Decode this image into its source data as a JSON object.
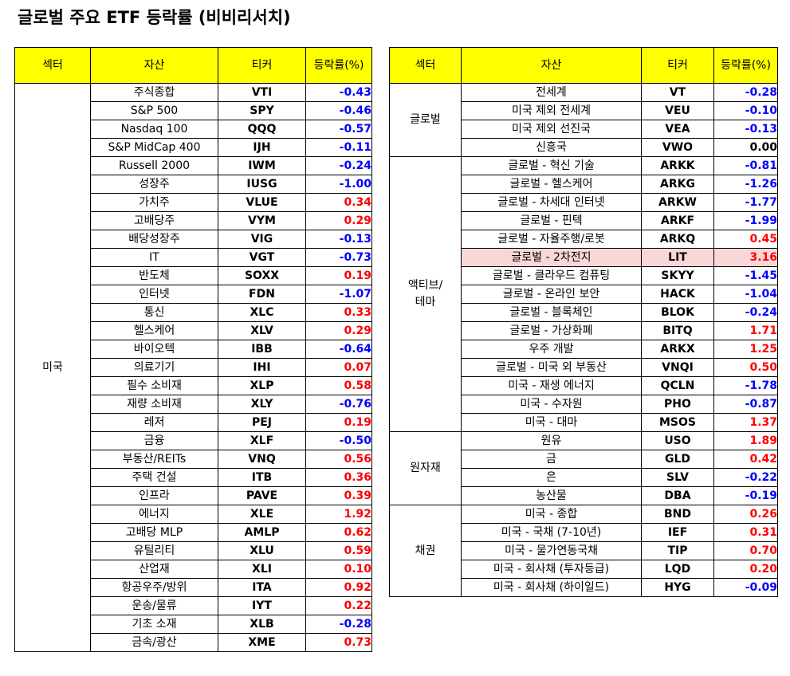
{
  "title": "글로벌 주요 ETF 등락률 (비비리서치)",
  "headers": {
    "sector": "섹터",
    "asset": "자산",
    "ticker": "티커",
    "change": "등락률(%)"
  },
  "colors": {
    "header_bg": "#ffff00",
    "positive": "#ff0000",
    "negative": "#0000ff",
    "highlight": "#f9d7d7"
  },
  "left": {
    "groups": [
      {
        "sector": "미국",
        "rows": [
          {
            "asset": "주식종합",
            "ticker": "VTI",
            "change": "-0.43"
          },
          {
            "asset": "S&P 500",
            "ticker": "SPY",
            "change": "-0.46"
          },
          {
            "asset": "Nasdaq 100",
            "ticker": "QQQ",
            "change": "-0.57"
          },
          {
            "asset": "S&P MidCap 400",
            "ticker": "IJH",
            "change": "-0.11"
          },
          {
            "asset": "Russell 2000",
            "ticker": "IWM",
            "change": "-0.24"
          },
          {
            "asset": "성장주",
            "ticker": "IUSG",
            "change": "-1.00"
          },
          {
            "asset": "가치주",
            "ticker": "VLUE",
            "change": "0.34"
          },
          {
            "asset": "고배당주",
            "ticker": "VYM",
            "change": "0.29"
          },
          {
            "asset": "배당성장주",
            "ticker": "VIG",
            "change": "-0.13"
          },
          {
            "asset": "IT",
            "ticker": "VGT",
            "change": "-0.73"
          },
          {
            "asset": "반도체",
            "ticker": "SOXX",
            "change": "0.19"
          },
          {
            "asset": "인터넷",
            "ticker": "FDN",
            "change": "-1.07"
          },
          {
            "asset": "통신",
            "ticker": "XLC",
            "change": "0.33"
          },
          {
            "asset": "헬스케어",
            "ticker": "XLV",
            "change": "0.29"
          },
          {
            "asset": "바이오텍",
            "ticker": "IBB",
            "change": "-0.64"
          },
          {
            "asset": "의료기기",
            "ticker": "IHI",
            "change": "0.07"
          },
          {
            "asset": "필수 소비재",
            "ticker": "XLP",
            "change": "0.58"
          },
          {
            "asset": "재량 소비재",
            "ticker": "XLY",
            "change": "-0.76"
          },
          {
            "asset": "레저",
            "ticker": "PEJ",
            "change": "0.19"
          },
          {
            "asset": "금융",
            "ticker": "XLF",
            "change": "-0.50"
          },
          {
            "asset": "부동산/REITs",
            "ticker": "VNQ",
            "change": "0.56"
          },
          {
            "asset": "주택 건설",
            "ticker": "ITB",
            "change": "0.36"
          },
          {
            "asset": "인프라",
            "ticker": "PAVE",
            "change": "0.39"
          },
          {
            "asset": "에너지",
            "ticker": "XLE",
            "change": "1.92"
          },
          {
            "asset": "고배당 MLP",
            "ticker": "AMLP",
            "change": "0.62"
          },
          {
            "asset": "유틸리티",
            "ticker": "XLU",
            "change": "0.59"
          },
          {
            "asset": "산업재",
            "ticker": "XLI",
            "change": "0.10"
          },
          {
            "asset": "항공우주/방위",
            "ticker": "ITA",
            "change": "0.92"
          },
          {
            "asset": "운송/물류",
            "ticker": "IYT",
            "change": "0.22"
          },
          {
            "asset": "기초 소재",
            "ticker": "XLB",
            "change": "-0.28"
          },
          {
            "asset": "금속/광산",
            "ticker": "XME",
            "change": "0.73"
          }
        ]
      }
    ]
  },
  "right": {
    "groups": [
      {
        "sector": "글로벌",
        "rows": [
          {
            "asset": "전세계",
            "ticker": "VT",
            "change": "-0.28"
          },
          {
            "asset": "미국 제외 전세계",
            "ticker": "VEU",
            "change": "-0.10"
          },
          {
            "asset": "미국 제외 선진국",
            "ticker": "VEA",
            "change": "-0.13"
          },
          {
            "asset": "신흥국",
            "ticker": "VWO",
            "change": "0.00"
          }
        ]
      },
      {
        "sector": "액티브/\n테마",
        "rows": [
          {
            "asset": "글로벌 - 혁신 기술",
            "ticker": "ARKK",
            "change": "-0.81"
          },
          {
            "asset": "글로벌 - 헬스케어",
            "ticker": "ARKG",
            "change": "-1.26"
          },
          {
            "asset": "글로벌 - 차세대 인터넷",
            "ticker": "ARKW",
            "change": "-1.77"
          },
          {
            "asset": "글로벌 - 핀텍",
            "ticker": "ARKF",
            "change": "-1.99"
          },
          {
            "asset": "글로벌 - 자율주행/로봇",
            "ticker": "ARKQ",
            "change": "0.45"
          },
          {
            "asset": "글로벌 - 2차전지",
            "ticker": "LIT",
            "change": "3.16",
            "highlight": true
          },
          {
            "asset": "글로벌 - 클라우드 컴퓨팅",
            "ticker": "SKYY",
            "change": "-1.45"
          },
          {
            "asset": "글로벌 - 온라인 보안",
            "ticker": "HACK",
            "change": "-1.04"
          },
          {
            "asset": "글로벌 - 블록체인",
            "ticker": "BLOK",
            "change": "-0.24"
          },
          {
            "asset": "글로벌 - 가상화폐",
            "ticker": "BITQ",
            "change": "1.71"
          },
          {
            "asset": "우주 개발",
            "ticker": "ARKX",
            "change": "1.25"
          },
          {
            "asset": "글로벌 - 미국 외 부동산",
            "ticker": "VNQI",
            "change": "0.50"
          },
          {
            "asset": "미국 - 재생 에너지",
            "ticker": "QCLN",
            "change": "-1.78"
          },
          {
            "asset": "미국 - 수자원",
            "ticker": "PHO",
            "change": "-0.87"
          },
          {
            "asset": "미국 - 대마",
            "ticker": "MSOS",
            "change": "1.37"
          }
        ]
      },
      {
        "sector": "원자재",
        "rows": [
          {
            "asset": "원유",
            "ticker": "USO",
            "change": "1.89"
          },
          {
            "asset": "금",
            "ticker": "GLD",
            "change": "0.42"
          },
          {
            "asset": "은",
            "ticker": "SLV",
            "change": "-0.22"
          },
          {
            "asset": "농산물",
            "ticker": "DBA",
            "change": "-0.19"
          }
        ]
      },
      {
        "sector": "채권",
        "rows": [
          {
            "asset": "미국 - 종합",
            "ticker": "BND",
            "change": "0.26"
          },
          {
            "asset": "미국 - 국채 (7-10년)",
            "ticker": "IEF",
            "change": "0.31"
          },
          {
            "asset": "미국 - 물가연동국채",
            "ticker": "TIP",
            "change": "0.70"
          },
          {
            "asset": "미국 - 회사채 (투자등급)",
            "ticker": "LQD",
            "change": "0.20"
          },
          {
            "asset": "미국 - 회사채 (하이일드)",
            "ticker": "HYG",
            "change": "-0.09"
          }
        ]
      }
    ]
  }
}
